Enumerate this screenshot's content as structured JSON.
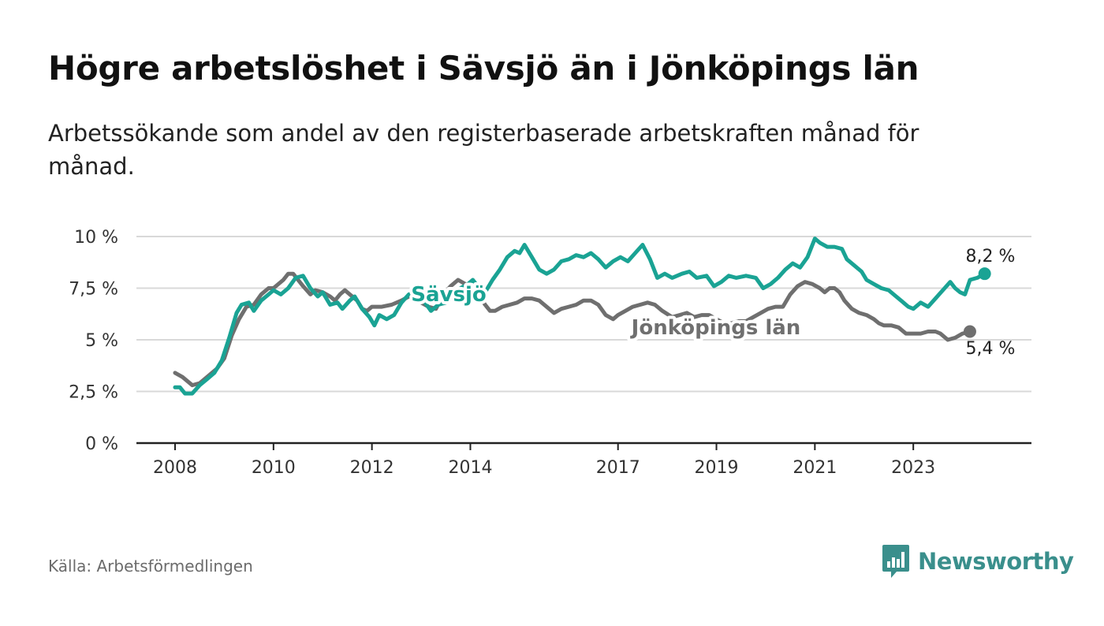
{
  "title": "Högre arbetslöshet i Sävsjö än i Jönköpings län",
  "subtitle": "Arbetssökande som andel av den registerbaserade arbetskraften månad för månad.",
  "source": "Källa: Arbetsförmedlingen",
  "brand": {
    "name": "Newsworthy",
    "icon": "bar-chart-speech-bubble-icon",
    "color": "#3a8f8c"
  },
  "chart_data": {
    "type": "line",
    "title": "Högre arbetslöshet i Sävsjö än i Jönköpings län",
    "xlabel": "",
    "ylabel": "",
    "xlim": [
      2008.0,
      2025.0
    ],
    "ylim": [
      0,
      10
    ],
    "grid": true,
    "y_ticks": [
      {
        "value": 10,
        "label": "10 %"
      },
      {
        "value": 7.5,
        "label": "7,5 %"
      },
      {
        "value": 5,
        "label": "5 %"
      },
      {
        "value": 2.5,
        "label": "2,5 %"
      },
      {
        "value": 0,
        "label": "0 %"
      }
    ],
    "x_ticks": [
      {
        "value": 2008,
        "label": "2008"
      },
      {
        "value": 2010,
        "label": "2010"
      },
      {
        "value": 2012,
        "label": "2012"
      },
      {
        "value": 2014,
        "label": "2014"
      },
      {
        "value": 2017,
        "label": "2017"
      },
      {
        "value": 2019,
        "label": "2019"
      },
      {
        "value": 2021,
        "label": "2021"
      },
      {
        "value": 2023,
        "label": "2023"
      }
    ],
    "series": [
      {
        "name": "Jönköpings län",
        "color": "#6f6f6f",
        "end_label": "5,4 %",
        "points": [
          [
            2008.0,
            3.4
          ],
          [
            2008.15,
            3.2
          ],
          [
            2008.35,
            2.8
          ],
          [
            2008.5,
            2.9
          ],
          [
            2008.7,
            3.3
          ],
          [
            2008.85,
            3.6
          ],
          [
            2009.0,
            4.1
          ],
          [
            2009.15,
            5.2
          ],
          [
            2009.3,
            6.0
          ],
          [
            2009.45,
            6.6
          ],
          [
            2009.6,
            6.7
          ],
          [
            2009.75,
            7.2
          ],
          [
            2009.9,
            7.5
          ],
          [
            2010.0,
            7.5
          ],
          [
            2010.2,
            7.9
          ],
          [
            2010.3,
            8.2
          ],
          [
            2010.4,
            8.2
          ],
          [
            2010.5,
            7.9
          ],
          [
            2010.6,
            7.6
          ],
          [
            2010.75,
            7.2
          ],
          [
            2010.85,
            7.4
          ],
          [
            2011.0,
            7.3
          ],
          [
            2011.15,
            7.1
          ],
          [
            2011.25,
            6.9
          ],
          [
            2011.35,
            7.2
          ],
          [
            2011.45,
            7.4
          ],
          [
            2011.55,
            7.2
          ],
          [
            2011.7,
            6.9
          ],
          [
            2011.8,
            6.5
          ],
          [
            2011.9,
            6.4
          ],
          [
            2012.0,
            6.6
          ],
          [
            2012.2,
            6.6
          ],
          [
            2012.4,
            6.7
          ],
          [
            2012.6,
            6.9
          ],
          [
            2012.75,
            7.1
          ],
          [
            2012.9,
            7.0
          ],
          [
            2013.0,
            6.8
          ],
          [
            2013.15,
            6.6
          ],
          [
            2013.3,
            6.5
          ],
          [
            2013.45,
            7.2
          ],
          [
            2013.6,
            7.6
          ],
          [
            2013.75,
            7.9
          ],
          [
            2013.9,
            7.7
          ],
          [
            2014.0,
            7.6
          ],
          [
            2014.15,
            7.2
          ],
          [
            2014.3,
            6.7
          ],
          [
            2014.4,
            6.4
          ],
          [
            2014.5,
            6.4
          ],
          [
            2014.65,
            6.6
          ],
          [
            2014.8,
            6.7
          ],
          [
            2014.95,
            6.8
          ],
          [
            2015.1,
            7.0
          ],
          [
            2015.25,
            7.0
          ],
          [
            2015.4,
            6.9
          ],
          [
            2015.55,
            6.6
          ],
          [
            2015.7,
            6.3
          ],
          [
            2015.85,
            6.5
          ],
          [
            2016.0,
            6.6
          ],
          [
            2016.15,
            6.7
          ],
          [
            2016.3,
            6.9
          ],
          [
            2016.45,
            6.9
          ],
          [
            2016.6,
            6.7
          ],
          [
            2016.75,
            6.2
          ],
          [
            2016.9,
            6.0
          ],
          [
            2017.0,
            6.2
          ],
          [
            2017.15,
            6.4
          ],
          [
            2017.3,
            6.6
          ],
          [
            2017.45,
            6.7
          ],
          [
            2017.6,
            6.8
          ],
          [
            2017.75,
            6.7
          ],
          [
            2017.9,
            6.4
          ],
          [
            2018.1,
            6.1
          ],
          [
            2018.25,
            6.2
          ],
          [
            2018.4,
            6.3
          ],
          [
            2018.55,
            6.1
          ],
          [
            2018.7,
            6.2
          ],
          [
            2018.85,
            6.2
          ],
          [
            2019.0,
            6.0
          ],
          [
            2019.15,
            5.8
          ],
          [
            2019.3,
            5.8
          ],
          [
            2019.45,
            5.9
          ],
          [
            2019.6,
            5.9
          ],
          [
            2019.75,
            6.1
          ],
          [
            2019.9,
            6.3
          ],
          [
            2020.05,
            6.5
          ],
          [
            2020.2,
            6.6
          ],
          [
            2020.35,
            6.6
          ],
          [
            2020.5,
            7.2
          ],
          [
            2020.65,
            7.6
          ],
          [
            2020.8,
            7.8
          ],
          [
            2020.95,
            7.7
          ],
          [
            2021.1,
            7.5
          ],
          [
            2021.2,
            7.3
          ],
          [
            2021.3,
            7.5
          ],
          [
            2021.4,
            7.5
          ],
          [
            2021.5,
            7.3
          ],
          [
            2021.6,
            6.9
          ],
          [
            2021.75,
            6.5
          ],
          [
            2021.9,
            6.3
          ],
          [
            2022.05,
            6.2
          ],
          [
            2022.2,
            6.0
          ],
          [
            2022.3,
            5.8
          ],
          [
            2022.4,
            5.7
          ],
          [
            2022.55,
            5.7
          ],
          [
            2022.7,
            5.6
          ],
          [
            2022.85,
            5.3
          ],
          [
            2023.0,
            5.3
          ],
          [
            2023.15,
            5.3
          ],
          [
            2023.3,
            5.4
          ],
          [
            2023.45,
            5.4
          ],
          [
            2023.55,
            5.3
          ],
          [
            2023.7,
            5.0
          ],
          [
            2023.85,
            5.1
          ],
          [
            2024.0,
            5.3
          ],
          [
            2024.15,
            5.4
          ]
        ]
      },
      {
        "name": "Sävsjö",
        "color": "#1aa394",
        "end_label": "8,2 %",
        "points": [
          [
            2008.0,
            2.7
          ],
          [
            2008.1,
            2.7
          ],
          [
            2008.2,
            2.4
          ],
          [
            2008.35,
            2.4
          ],
          [
            2008.5,
            2.8
          ],
          [
            2008.65,
            3.1
          ],
          [
            2008.8,
            3.4
          ],
          [
            2008.95,
            4.0
          ],
          [
            2009.1,
            5.1
          ],
          [
            2009.25,
            6.3
          ],
          [
            2009.35,
            6.7
          ],
          [
            2009.5,
            6.8
          ],
          [
            2009.6,
            6.4
          ],
          [
            2009.75,
            6.9
          ],
          [
            2009.9,
            7.2
          ],
          [
            2010.0,
            7.4
          ],
          [
            2010.15,
            7.2
          ],
          [
            2010.3,
            7.5
          ],
          [
            2010.45,
            8.0
          ],
          [
            2010.6,
            8.1
          ],
          [
            2010.75,
            7.5
          ],
          [
            2010.9,
            7.1
          ],
          [
            2011.0,
            7.3
          ],
          [
            2011.15,
            6.7
          ],
          [
            2011.3,
            6.8
          ],
          [
            2011.4,
            6.5
          ],
          [
            2011.55,
            6.9
          ],
          [
            2011.65,
            7.1
          ],
          [
            2011.8,
            6.5
          ],
          [
            2011.95,
            6.1
          ],
          [
            2012.05,
            5.7
          ],
          [
            2012.15,
            6.2
          ],
          [
            2012.3,
            6.0
          ],
          [
            2012.45,
            6.2
          ],
          [
            2012.6,
            6.8
          ],
          [
            2012.75,
            7.2
          ],
          [
            2012.9,
            7.3
          ],
          [
            2013.05,
            6.9
          ],
          [
            2013.2,
            6.4
          ],
          [
            2013.35,
            6.7
          ],
          [
            2013.5,
            6.8
          ],
          [
            2013.65,
            7.2
          ],
          [
            2013.8,
            7.5
          ],
          [
            2013.95,
            7.7
          ],
          [
            2014.05,
            7.9
          ],
          [
            2014.15,
            7.6
          ],
          [
            2014.3,
            7.3
          ],
          [
            2014.45,
            7.9
          ],
          [
            2014.6,
            8.4
          ],
          [
            2014.75,
            9.0
          ],
          [
            2014.9,
            9.3
          ],
          [
            2015.0,
            9.2
          ],
          [
            2015.1,
            9.6
          ],
          [
            2015.25,
            9.0
          ],
          [
            2015.4,
            8.4
          ],
          [
            2015.55,
            8.2
          ],
          [
            2015.7,
            8.4
          ],
          [
            2015.85,
            8.8
          ],
          [
            2016.0,
            8.9
          ],
          [
            2016.15,
            9.1
          ],
          [
            2016.3,
            9.0
          ],
          [
            2016.45,
            9.2
          ],
          [
            2016.6,
            8.9
          ],
          [
            2016.75,
            8.5
          ],
          [
            2016.9,
            8.8
          ],
          [
            2017.05,
            9.0
          ],
          [
            2017.2,
            8.8
          ],
          [
            2017.35,
            9.2
          ],
          [
            2017.5,
            9.6
          ],
          [
            2017.65,
            8.9
          ],
          [
            2017.8,
            8.0
          ],
          [
            2017.95,
            8.2
          ],
          [
            2018.1,
            8.0
          ],
          [
            2018.3,
            8.2
          ],
          [
            2018.45,
            8.3
          ],
          [
            2018.6,
            8.0
          ],
          [
            2018.8,
            8.1
          ],
          [
            2018.95,
            7.6
          ],
          [
            2019.1,
            7.8
          ],
          [
            2019.25,
            8.1
          ],
          [
            2019.4,
            8.0
          ],
          [
            2019.6,
            8.1
          ],
          [
            2019.8,
            8.0
          ],
          [
            2019.95,
            7.5
          ],
          [
            2020.1,
            7.7
          ],
          [
            2020.25,
            8.0
          ],
          [
            2020.4,
            8.4
          ],
          [
            2020.55,
            8.7
          ],
          [
            2020.7,
            8.5
          ],
          [
            2020.85,
            9.0
          ],
          [
            2021.0,
            9.9
          ],
          [
            2021.1,
            9.7
          ],
          [
            2021.25,
            9.5
          ],
          [
            2021.4,
            9.5
          ],
          [
            2021.55,
            9.4
          ],
          [
            2021.65,
            8.9
          ],
          [
            2021.8,
            8.6
          ],
          [
            2021.95,
            8.3
          ],
          [
            2022.05,
            7.9
          ],
          [
            2022.2,
            7.7
          ],
          [
            2022.35,
            7.5
          ],
          [
            2022.5,
            7.4
          ],
          [
            2022.6,
            7.2
          ],
          [
            2022.75,
            6.9
          ],
          [
            2022.9,
            6.6
          ],
          [
            2023.0,
            6.5
          ],
          [
            2023.15,
            6.8
          ],
          [
            2023.3,
            6.6
          ],
          [
            2023.45,
            7.0
          ],
          [
            2023.6,
            7.4
          ],
          [
            2023.75,
            7.8
          ],
          [
            2023.85,
            7.5
          ],
          [
            2023.95,
            7.3
          ],
          [
            2024.05,
            7.2
          ],
          [
            2024.15,
            7.9
          ],
          [
            2024.3,
            8.0
          ],
          [
            2024.45,
            8.2
          ]
        ]
      }
    ]
  }
}
